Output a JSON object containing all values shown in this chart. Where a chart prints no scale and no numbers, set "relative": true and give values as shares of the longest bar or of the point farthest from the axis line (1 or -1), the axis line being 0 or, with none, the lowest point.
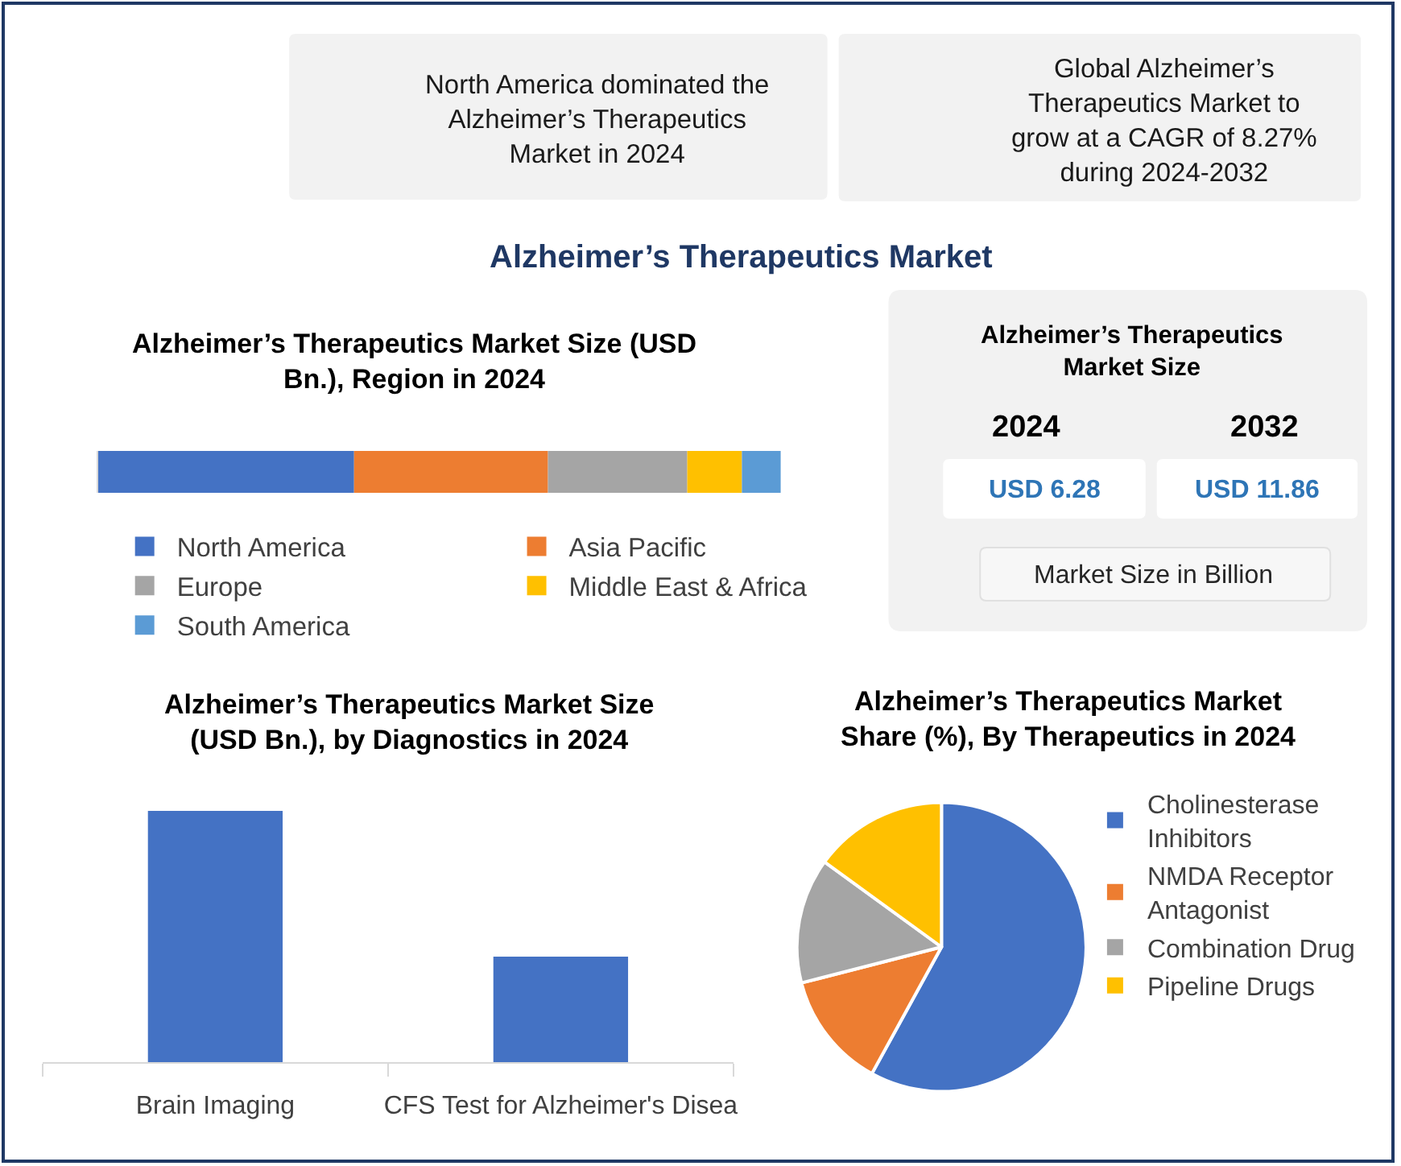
{
  "chart_data": [
    {
      "type": "other",
      "title": "Alzheimer’s Therapeutics Market",
      "annotations": [
        "North America dominated the Alzheimer’s Therapeutics Market in 2024",
        "Global Alzheimer’s Therapeutics Market to grow at a CAGR of 8.27% during 2024-2032"
      ]
    },
    {
      "type": "bar",
      "orientation": "horizontal",
      "stacked": true,
      "relative": true,
      "title": "Alzheimer’s Therapeutics Market Size (USD Bn.), Region in 2024",
      "categories": [
        null
      ],
      "series": [
        {
          "name": "North America",
          "color": "#4472c4",
          "values": [
            0.375
          ]
        },
        {
          "name": "Asia Pacific",
          "color": "#ed7d31",
          "values": [
            0.284
          ]
        },
        {
          "name": "Europe",
          "color": "#a5a5a5",
          "values": [
            0.204
          ]
        },
        {
          "name": "Middle East & Africa",
          "color": "#ffc000",
          "values": [
            0.08
          ]
        },
        {
          "name": "South America",
          "color": "#5b9bd5",
          "values": [
            0.057
          ]
        }
      ],
      "legend": "bottom"
    },
    {
      "type": "other",
      "title": "Alzheimer’s Therapeutics Market Size",
      "annotations": [
        "2024",
        "2032",
        "USD 6.28",
        "USD 11.86",
        "Market Size in Billion"
      ]
    },
    {
      "type": "bar",
      "relative": true,
      "title": "Alzheimer’s Therapeutics Market Size (USD Bn.), by Diagnostics in 2024",
      "categories": [
        "Brain Imaging",
        "CFS Test for Alzheimer's Disea"
      ],
      "values": [
        1,
        0.42
      ],
      "color": "#4472c4"
    },
    {
      "type": "pie",
      "title": "Alzheimer’s Therapeutics Market Share (%), By Therapeutics in 2024",
      "categories": [
        "Cholinesterase Inhibitors",
        "NMDA Receptor Antagonist",
        "Combination Drug",
        "Pipeline Drugs"
      ],
      "values": [
        58,
        13,
        14,
        15
      ],
      "colors": [
        "#4472c4",
        "#ed7d31",
        "#a5a5a5",
        "#ffc000"
      ],
      "legend": "right"
    }
  ]
}
